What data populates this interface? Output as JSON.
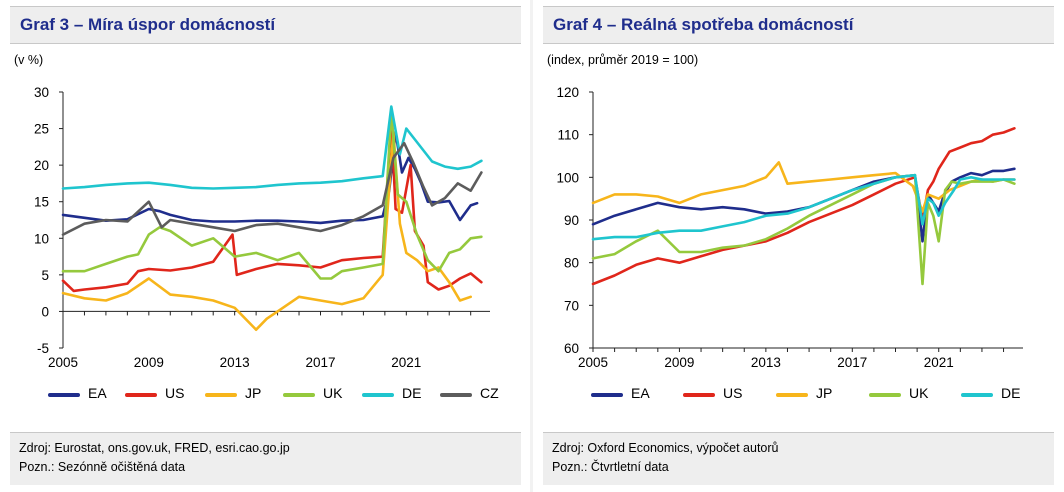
{
  "left": {
    "title": "Graf 3 – Míra úspor domácností",
    "unit": "(v %)",
    "footer_source": "Zdroj: Eurostat, ons.gov.uk, FRED, esri.cao.go.jp",
    "footer_note": "Pozn.: Sezónně očištěná data"
  },
  "right": {
    "title": "Graf 4 – Reálná spotřeba domácností",
    "unit": "(index, průměr 2019 = 100)",
    "footer_source": "Zdroj: Oxford Economics, výpočet autorů",
    "footer_note": "Pozn.: Čtvrtletní data"
  },
  "chart_data": [
    {
      "type": "line",
      "title": "Graf 3 – Míra úspor domácností",
      "ylabel": "(v %)",
      "xlim": [
        2005,
        2024.9
      ],
      "ylim": [
        -5,
        30
      ],
      "yticks": [
        -5,
        0,
        5,
        10,
        15,
        20,
        25,
        30
      ],
      "xticks": [
        2005,
        2009,
        2013,
        2017,
        2021
      ],
      "grid": false,
      "legend_position": "bottom",
      "series": [
        {
          "name": "EA",
          "color": "#1f2d8c",
          "x": [
            2005,
            2006,
            2007,
            2008,
            2009,
            2009.5,
            2010,
            2011,
            2012,
            2013,
            2014,
            2015,
            2016,
            2017,
            2018,
            2019,
            2019.9,
            2020.2,
            2020.5,
            2020.8,
            2021.1,
            2021.4,
            2021.7,
            2022.0,
            2022.5,
            2023.0,
            2023.5,
            2024.0,
            2024.3
          ],
          "values": [
            13.2,
            12.8,
            12.4,
            12.6,
            14.0,
            13.7,
            13.2,
            12.5,
            12.3,
            12.3,
            12.4,
            12.4,
            12.3,
            12.1,
            12.4,
            12.5,
            13.0,
            16.5,
            24.5,
            19.0,
            21.0,
            19.5,
            17.5,
            15.0,
            14.9,
            15.1,
            12.5,
            14.5,
            14.8
          ]
        },
        {
          "name": "US",
          "color": "#e0261b",
          "x": [
            2005,
            2005.5,
            2006,
            2007,
            2008,
            2008.5,
            2009,
            2010,
            2011,
            2012,
            2012.9,
            2013.1,
            2014,
            2015,
            2016,
            2017,
            2018,
            2019,
            2019.9,
            2020.3,
            2020.5,
            2020.8,
            2021.2,
            2021.4,
            2021.8,
            2022.0,
            2022.5,
            2023.0,
            2023.5,
            2024.0,
            2024.5
          ],
          "values": [
            4.2,
            2.8,
            3.0,
            3.3,
            3.8,
            5.5,
            5.8,
            5.6,
            6.0,
            6.8,
            10.5,
            5.0,
            5.8,
            6.5,
            6.3,
            6.0,
            7.0,
            7.3,
            7.5,
            26.0,
            14.0,
            13.5,
            20.0,
            11.0,
            9.0,
            4.0,
            3.0,
            3.5,
            4.5,
            5.2,
            4.0
          ]
        },
        {
          "name": "JP",
          "color": "#f7b51b",
          "x": [
            2005,
            2006,
            2007,
            2008,
            2009,
            2010,
            2011,
            2012,
            2013,
            2014,
            2014.5,
            2015,
            2016,
            2017,
            2018,
            2019,
            2019.9,
            2020.4,
            2020.7,
            2021.0,
            2021.5,
            2022.0,
            2022.5,
            2023.0,
            2023.5,
            2024.0
          ],
          "values": [
            2.5,
            1.8,
            1.5,
            2.5,
            4.5,
            2.3,
            2.0,
            1.5,
            0.5,
            -2.5,
            -1.0,
            0.0,
            2.0,
            1.5,
            1.0,
            1.8,
            5.0,
            24.5,
            12.0,
            8.0,
            7.0,
            5.5,
            6.0,
            4.0,
            1.5,
            2.0
          ]
        },
        {
          "name": "UK",
          "color": "#95c93d",
          "x": [
            2005,
            2006,
            2007,
            2008,
            2008.5,
            2009,
            2009.5,
            2010,
            2010.5,
            2011,
            2012,
            2013,
            2014,
            2015,
            2016,
            2017,
            2017.5,
            2018,
            2019,
            2019.9,
            2020.3,
            2020.6,
            2021.0,
            2021.5,
            2022.0,
            2022.5,
            2023.0,
            2023.5,
            2024.0,
            2024.5
          ],
          "values": [
            5.5,
            5.5,
            6.5,
            7.5,
            7.8,
            10.5,
            11.5,
            11.0,
            10.0,
            9.0,
            10.0,
            7.5,
            8.0,
            7.0,
            8.0,
            4.5,
            4.5,
            5.5,
            6.0,
            6.5,
            27.5,
            16.0,
            15.0,
            10.5,
            7.0,
            5.5,
            8.0,
            8.5,
            10.0,
            10.2
          ]
        },
        {
          "name": "DE",
          "color": "#1fc5ce",
          "x": [
            2005,
            2006,
            2007,
            2008,
            2009,
            2010,
            2011,
            2012,
            2013,
            2014,
            2015,
            2016,
            2017,
            2018,
            2019,
            2019.9,
            2020.3,
            2020.7,
            2021.0,
            2021.4,
            2021.8,
            2022.2,
            2022.8,
            2023.4,
            2024.0,
            2024.5
          ],
          "values": [
            16.8,
            17.0,
            17.3,
            17.5,
            17.6,
            17.3,
            16.9,
            16.8,
            16.9,
            17.0,
            17.3,
            17.5,
            17.6,
            17.8,
            18.2,
            18.5,
            28.0,
            21.5,
            25.0,
            23.5,
            22.0,
            20.5,
            19.8,
            19.5,
            19.8,
            20.6
          ]
        },
        {
          "name": "CZ",
          "color": "#5c5c5c",
          "x": [
            2005,
            2006,
            2007,
            2008,
            2009,
            2009.6,
            2010,
            2011,
            2012,
            2013,
            2014,
            2015,
            2016,
            2017,
            2018,
            2019,
            2019.9,
            2020.4,
            2020.9,
            2021.3,
            2021.8,
            2022.2,
            2022.8,
            2023.4,
            2024.0,
            2024.5
          ],
          "values": [
            10.5,
            12.0,
            12.5,
            12.3,
            15.0,
            11.5,
            12.5,
            12.0,
            11.5,
            11.0,
            11.8,
            12.0,
            11.5,
            11.0,
            11.8,
            13.0,
            14.5,
            21.0,
            23.0,
            20.5,
            17.0,
            14.5,
            15.5,
            17.5,
            16.5,
            19.0
          ]
        }
      ]
    },
    {
      "type": "line",
      "title": "Graf 4 – Reálná spotřeba domácností",
      "ylabel": "(index, průměr 2019 = 100)",
      "xlim": [
        2005,
        2024.9
      ],
      "ylim": [
        60,
        120
      ],
      "yticks": [
        60,
        70,
        80,
        90,
        100,
        110,
        120
      ],
      "xticks": [
        2005,
        2009,
        2013,
        2017,
        2021
      ],
      "grid": false,
      "legend_position": "bottom",
      "series": [
        {
          "name": "EA",
          "color": "#1f2d8c",
          "x": [
            2005,
            2006,
            2007,
            2008,
            2009,
            2010,
            2011,
            2012,
            2013,
            2014,
            2015,
            2016,
            2017,
            2018,
            2019,
            2019.9,
            2020.25,
            2020.5,
            2020.75,
            2021.0,
            2021.25,
            2021.6,
            2022.0,
            2022.5,
            2023.0,
            2023.5,
            2024.0,
            2024.5
          ],
          "values": [
            89,
            91,
            92.5,
            94,
            93,
            92.5,
            93,
            92.5,
            91.5,
            92,
            93,
            95,
            97,
            99,
            100,
            100.5,
            85,
            96,
            94,
            92,
            96,
            99,
            100,
            101,
            100.5,
            101.5,
            101.5,
            102
          ]
        },
        {
          "name": "US",
          "color": "#e0261b",
          "x": [
            2005,
            2006,
            2007,
            2008,
            2009,
            2010,
            2011,
            2012,
            2013,
            2014,
            2015,
            2016,
            2017,
            2018,
            2019,
            2019.9,
            2020.25,
            2020.5,
            2020.75,
            2021.0,
            2021.5,
            2022.0,
            2022.5,
            2023.0,
            2023.5,
            2024.0,
            2024.5
          ],
          "values": [
            75,
            77,
            79.5,
            81,
            80,
            81.5,
            83,
            84,
            85,
            87,
            89.5,
            91.5,
            93.5,
            96,
            98.5,
            100,
            90,
            97,
            99,
            102,
            106,
            107,
            108,
            108.5,
            110,
            110.5,
            111.5
          ]
        },
        {
          "name": "JP",
          "color": "#f7b51b",
          "x": [
            2005,
            2006,
            2007,
            2008,
            2009,
            2010,
            2011,
            2012,
            2013,
            2013.6,
            2014,
            2015,
            2016,
            2017,
            2018,
            2019,
            2019.8,
            2020.25,
            2020.5,
            2021.0,
            2021.5,
            2022.0,
            2022.5,
            2023.0,
            2023.5,
            2024.0,
            2024.5
          ],
          "values": [
            94,
            96,
            96,
            95.5,
            94,
            96,
            97,
            98,
            100,
            103.5,
            98.5,
            99,
            99.5,
            100,
            100.5,
            101,
            98,
            92,
            96,
            95,
            97,
            98,
            99,
            99.5,
            99,
            99.5,
            99.5
          ]
        },
        {
          "name": "UK",
          "color": "#95c93d",
          "x": [
            2005,
            2006,
            2007,
            2008,
            2009,
            2010,
            2011,
            2012,
            2013,
            2014,
            2015,
            2016,
            2017,
            2018,
            2019,
            2019.9,
            2020.25,
            2020.5,
            2020.75,
            2021.0,
            2021.3,
            2021.6,
            2022.0,
            2022.5,
            2023.0,
            2023.5,
            2024.0,
            2024.5
          ],
          "values": [
            81,
            82,
            85,
            87.5,
            82.5,
            82.5,
            83.5,
            84,
            85.5,
            88,
            91,
            93.5,
            96,
            98.5,
            100,
            100.5,
            75,
            94,
            91,
            85,
            97,
            99,
            98.5,
            99,
            99,
            99,
            99.5,
            98.5
          ]
        },
        {
          "name": "DE",
          "color": "#1fc5ce",
          "x": [
            2005,
            2006,
            2007,
            2008,
            2009,
            2010,
            2011,
            2012,
            2013,
            2014,
            2015,
            2016,
            2017,
            2018,
            2019,
            2019.9,
            2020.25,
            2020.5,
            2020.75,
            2021.0,
            2021.3,
            2021.7,
            2022.0,
            2022.5,
            2023.0,
            2023.5,
            2024.0,
            2024.5
          ],
          "values": [
            85.5,
            86,
            86,
            87,
            87.5,
            87.5,
            88.5,
            89.5,
            91,
            91.5,
            93,
            95,
            97,
            98.5,
            100,
            100.5,
            89,
            95,
            94,
            91,
            94,
            97,
            99.5,
            100,
            99.5,
            99.5,
            99.5,
            99.5
          ]
        }
      ]
    }
  ]
}
